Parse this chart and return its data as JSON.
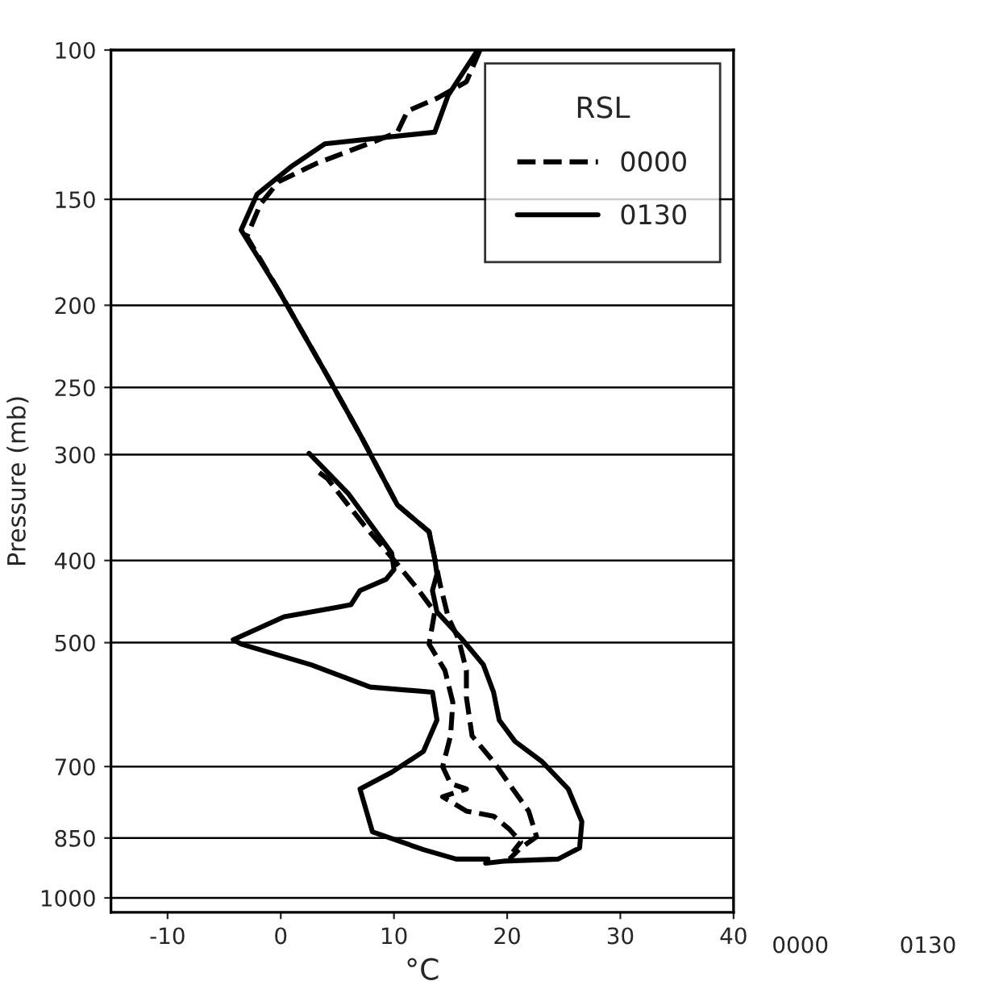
{
  "chart_data": {
    "type": "line",
    "xlabel": "°C",
    "ylabel": "Pressure (mb)",
    "legend_title": "RSL",
    "legend": "top right",
    "log": "y",
    "grid": "y",
    "xlim": [
      -15,
      40
    ],
    "xticks": [
      -10,
      0,
      10,
      20,
      30,
      40
    ],
    "ylim": [
      1040,
      100
    ],
    "yticks": [
      100,
      150,
      200,
      250,
      300,
      400,
      500,
      700,
      850,
      1000
    ],
    "annotations": [
      "0000",
      "0130"
    ],
    "series": [
      {
        "name": "0000",
        "color": "#000000",
        "line_style": "dashed",
        "x": [
          17.6,
          16.4,
          13.8,
          11.2,
          10.3,
          8.4,
          3.2,
          -0.2,
          -1.8,
          -3.0,
          -0.2,
          4.1,
          7.0,
          10.3,
          13.1,
          13.6,
          14.1,
          14.8,
          15.7,
          16.4,
          16.4,
          16.9,
          18.8,
          20.5,
          21.9,
          22.6,
          21.2,
          20.2
        ],
        "values": [
          100,
          109,
          114,
          118,
          125,
          128,
          136,
          143,
          152,
          166,
          192,
          242,
          284,
          344,
          370,
          398,
          428,
          467,
          495,
          539,
          580,
          644,
          691,
          744,
          790,
          847,
          873,
          900
        ]
      },
      {
        "color": "#000000",
        "line_style": "dashed",
        "x": [
          3.4,
          4.1,
          7.4,
          10.3,
          12.2,
          13.6,
          13.1,
          14.5,
          15.2,
          15.0,
          14.3,
          15.0,
          16.4,
          14.3,
          16.4,
          18.8,
          20.2,
          21.2,
          20.5
        ],
        "values": [
          315,
          320,
          364,
          404,
          434,
          460,
          502,
          539,
          588,
          644,
          700,
          733,
          744,
          760,
          790,
          801,
          830,
          859,
          883
        ]
      },
      {
        "name": "0130",
        "color": "#000000",
        "line_style": "solid",
        "x": [
          17.4,
          14.8,
          13.6,
          3.9,
          1.0,
          -2.1,
          -3.5,
          -0.2,
          4.1,
          7.0,
          10.3,
          13.1,
          13.6,
          13.8,
          13.4,
          13.8,
          16.0,
          17.9,
          18.8,
          19.3,
          20.7,
          23.1,
          25.4,
          26.6,
          26.4,
          24.5,
          19.7,
          18.1
        ],
        "values": [
          100,
          113,
          125,
          129,
          137,
          148,
          163,
          192,
          242,
          284,
          344,
          370,
          398,
          415,
          434,
          460,
          495,
          531,
          572,
          617,
          654,
          691,
          744,
          813,
          873,
          900,
          905,
          910
        ]
      },
      {
        "color": "#000000",
        "line_style": "solid",
        "x": [
          2.5,
          6.0,
          9.8,
          10.0,
          9.3,
          7.0,
          6.2,
          5.1,
          0.3,
          -4.2,
          -3.5,
          2.7,
          7.9,
          13.4,
          13.8,
          12.6,
          9.8,
          7.0,
          8.1,
          12.6,
          15.5,
          18.3
        ],
        "values": [
          299,
          334,
          392,
          410,
          421,
          434,
          451,
          454,
          466,
          496,
          502,
          531,
          564,
          572,
          617,
          672,
          711,
          744,
          836,
          877,
          900,
          900
        ]
      }
    ]
  }
}
